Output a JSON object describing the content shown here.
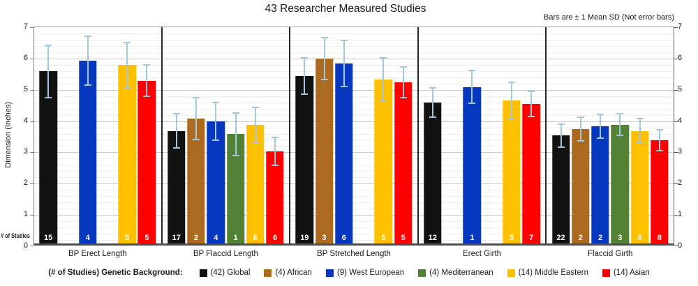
{
  "title": "43 Researcher Measured Studies",
  "note": "Bars are ± 1 Mean SD (Not error bars)",
  "y_axis": {
    "label": "Dimension (Inches)",
    "min": 0,
    "max": 7,
    "ticks": [
      0,
      1,
      2,
      3,
      4,
      5,
      6,
      7
    ]
  },
  "x_axis_note": "# of Studies",
  "legend": {
    "prefix": "(# of Studies) Genetic Background:",
    "items": [
      {
        "label": "(42) Global",
        "color": "#111111"
      },
      {
        "label": "(4) African",
        "color": "#ac6a21"
      },
      {
        "label": "(9) West European",
        "color": "#0538be"
      },
      {
        "label": "(4) Mediterranean",
        "color": "#538135"
      },
      {
        "label": "(14) Middle Eastern",
        "color": "#ffc000"
      },
      {
        "label": "(14) Asian",
        "color": "#ff0000"
      }
    ]
  },
  "colors": {
    "error_bar": "#a3c7dc",
    "gridline_major": "#c9c9c9",
    "gridline_minor": "#ededed",
    "axis_bottom": "#4d4d4d",
    "group_separator": "#262626"
  },
  "chart_data": {
    "type": "bar",
    "title": "43 Researcher Measured Studies",
    "subtitle": "Bars are ± 1 Mean SD (Not error bars)",
    "xlabel": "",
    "ylabel": "Dimension (Inches)",
    "ylim": [
      0,
      7
    ],
    "grid": "major every 1.0, minor every 0.2",
    "legend_position": "bottom",
    "error_bars": "±1 mean SD whiskers (light blue) on every bar",
    "bar_bottom_labels": "number of studies per bar",
    "categories": [
      "BP Erect Length",
      "BP Flaccid Length",
      "BP Stretched Length",
      "Erect Girth",
      "Flaccid Girth"
    ],
    "series": [
      {
        "name": "(42) Global",
        "color": "#111111",
        "means": [
          5.5,
          3.6,
          5.35,
          4.5,
          3.45
        ],
        "sds": [
          0.83,
          0.55,
          0.57,
          0.47,
          0.37
        ],
        "study_counts": [
          15,
          17,
          19,
          12,
          22
        ]
      },
      {
        "name": "(4) African",
        "color": "#ac6a21",
        "means": [
          null,
          4.0,
          5.9,
          null,
          3.65
        ],
        "sds": [
          null,
          0.67,
          0.67,
          null,
          0.38
        ],
        "study_counts": [
          null,
          2,
          3,
          null,
          2
        ]
      },
      {
        "name": "(9) West European",
        "color": "#0538be",
        "means": [
          5.85,
          3.9,
          5.75,
          5.0,
          3.75
        ],
        "sds": [
          0.78,
          0.6,
          0.73,
          0.52,
          0.38
        ],
        "study_counts": [
          4,
          4,
          6,
          1,
          2
        ]
      },
      {
        "name": "(4) Mediterranean",
        "color": "#538135",
        "means": [
          null,
          3.5,
          null,
          null,
          3.8
        ],
        "sds": [
          null,
          0.68,
          null,
          null,
          0.35
        ],
        "study_counts": [
          null,
          1,
          null,
          null,
          3
        ]
      },
      {
        "name": "(14) Middle Eastern",
        "color": "#ffc000",
        "means": [
          5.7,
          3.78,
          5.25,
          4.57,
          3.6
        ],
        "sds": [
          0.72,
          0.57,
          0.68,
          0.57,
          0.4
        ],
        "study_counts": [
          5,
          6,
          5,
          5,
          8
        ]
      },
      {
        "name": "(14) Asian",
        "color": "#ff0000",
        "means": [
          5.2,
          2.95,
          5.15,
          4.45,
          3.3
        ],
        "sds": [
          0.5,
          0.45,
          0.5,
          0.4,
          0.33
        ],
        "study_counts": [
          5,
          6,
          5,
          7,
          8
        ]
      }
    ]
  }
}
